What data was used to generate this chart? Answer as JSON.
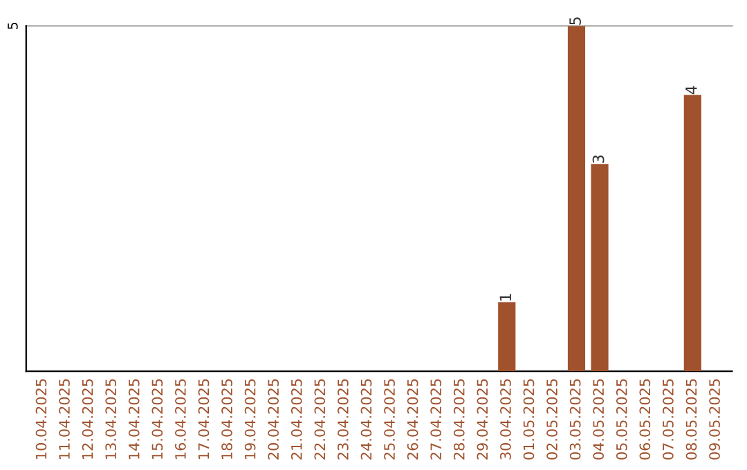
{
  "chart_data": {
    "type": "bar",
    "categories": [
      "10.04.2025",
      "11.04.2025",
      "12.04.2025",
      "13.04.2025",
      "14.04.2025",
      "15.04.2025",
      "16.04.2025",
      "17.04.2025",
      "18.04.2025",
      "19.04.2025",
      "20.04.2025",
      "21.04.2025",
      "22.04.2025",
      "23.04.2025",
      "24.04.2025",
      "25.04.2025",
      "26.04.2025",
      "27.04.2025",
      "28.04.2025",
      "29.04.2025",
      "30.04.2025",
      "01.05.2025",
      "02.05.2025",
      "03.05.2025",
      "04.05.2025",
      "05.05.2025",
      "06.05.2025",
      "07.05.2025",
      "08.05.2025",
      "09.05.2025"
    ],
    "values": [
      null,
      null,
      null,
      null,
      null,
      null,
      null,
      null,
      null,
      null,
      null,
      null,
      null,
      null,
      null,
      null,
      null,
      null,
      null,
      null,
      1,
      null,
      null,
      5,
      3,
      null,
      null,
      null,
      4,
      null
    ],
    "data_labels": true,
    "color": "#a0522d",
    "ylim": [
      0,
      5
    ],
    "yticks": [
      5
    ],
    "ref_lines": [
      {
        "axis": "y",
        "value": 5,
        "color": "#bbbbbb"
      }
    ],
    "legend": false
  }
}
